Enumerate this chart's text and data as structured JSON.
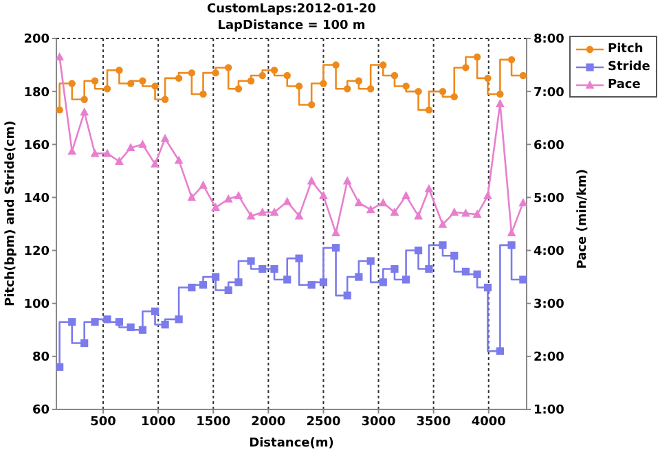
{
  "chart_data": {
    "type": "line",
    "title": "CustomLaps:2012-01-20",
    "subtitle": "LapDistance = 100 m",
    "xlabel": "Distance(m)",
    "ylabel": "Pitch(bpm) and Stride(cm)",
    "y2label": "Pace (min/km)",
    "x": [
      104,
      217,
      329,
      425,
      537,
      646,
      750,
      858,
      971,
      1062,
      1187,
      1304,
      1408,
      1521,
      1637,
      1729,
      1842,
      1946,
      2054,
      2171,
      2279,
      2392,
      2500,
      2613,
      2717,
      2821,
      2929,
      3042,
      3146,
      3250,
      3362,
      3458,
      3583,
      3688,
      3792,
      3896,
      3992,
      4104,
      4208,
      4313
    ],
    "series": [
      {
        "name": "Pitch",
        "type": "step",
        "color": "#ee8a1c",
        "marker": "circle",
        "values": [
          173,
          183,
          177,
          184,
          181,
          188,
          183,
          184,
          182,
          177,
          185,
          187,
          179,
          187,
          189,
          181,
          184,
          186,
          188,
          186,
          182,
          175,
          183,
          190,
          181,
          184,
          181,
          190,
          186,
          182,
          180,
          173,
          180,
          178,
          189,
          193,
          185,
          179,
          192,
          186
        ]
      },
      {
        "name": "Stride",
        "type": "step",
        "color": "#7b7bec",
        "marker": "square",
        "values": [
          76,
          93,
          85,
          93,
          94,
          93,
          91,
          90,
          97,
          92,
          94,
          106,
          107,
          110,
          105,
          108,
          116,
          113,
          113,
          109,
          117,
          107,
          108,
          121,
          103,
          110,
          116,
          108,
          113,
          109,
          120,
          113,
          122,
          118,
          112,
          111,
          106,
          82,
          122,
          109
        ]
      },
      {
        "name": "Pace",
        "type": "line",
        "axis": "y2",
        "color": "#e87fce",
        "marker": "triangle",
        "values": [
          7.65,
          5.87,
          6.61,
          5.83,
          5.83,
          5.68,
          5.94,
          6.0,
          5.63,
          6.11,
          5.7,
          5.0,
          5.23,
          4.81,
          4.97,
          5.03,
          4.65,
          4.72,
          4.72,
          4.92,
          4.65,
          5.31,
          5.03,
          4.33,
          5.31,
          4.9,
          4.77,
          4.9,
          4.72,
          5.03,
          4.65,
          5.16,
          4.49,
          4.72,
          4.7,
          4.68,
          5.03,
          6.77,
          4.33,
          4.9
        ]
      }
    ],
    "xlim": [
      75,
      4345
    ],
    "xticks": [
      500,
      1000,
      1500,
      2000,
      2500,
      3000,
      3500,
      4000
    ],
    "ylim": [
      60,
      200
    ],
    "yticks": [
      60,
      80,
      100,
      120,
      140,
      160,
      180,
      200
    ],
    "y2lim": [
      1,
      8
    ],
    "y2ticks": [
      {
        "value": 1,
        "label": "1:00"
      },
      {
        "value": 2,
        "label": "2:00"
      },
      {
        "value": 3,
        "label": "3:00"
      },
      {
        "value": 4,
        "label": "4:00"
      },
      {
        "value": 5,
        "label": "5:00"
      },
      {
        "value": 6,
        "label": "6:00"
      },
      {
        "value": 7,
        "label": "7:00"
      },
      {
        "value": 8,
        "label": "8:00"
      }
    ],
    "grid": true,
    "legend": "top right",
    "line_style": "solid"
  }
}
